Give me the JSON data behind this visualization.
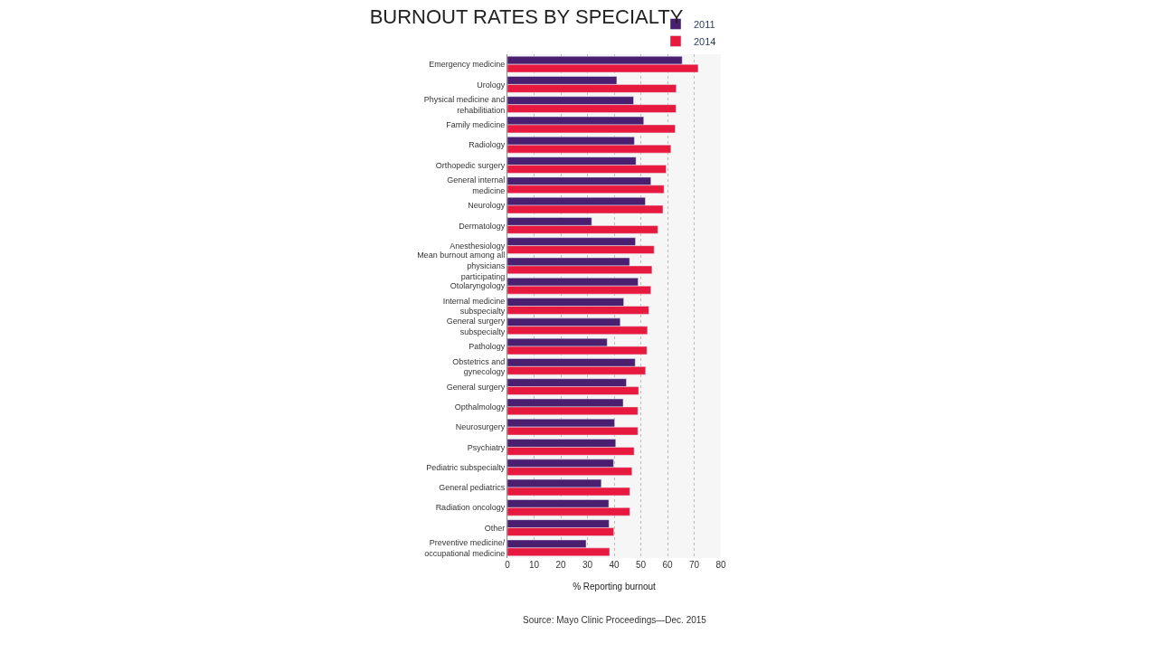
{
  "chart_data": {
    "type": "bar",
    "orientation": "horizontal",
    "title": "BURNOUT RATES BY SPECIALTY",
    "xlabel": "% Reporting burnout",
    "categories": [
      "Emergency medicine",
      "Urology",
      "Physical medicine and rehabilitiation",
      "Family medicine",
      "Radiology",
      "Orthopedic surgery",
      "General internal medicine",
      "Neurology",
      "Dermatology",
      "Anesthesiology",
      "Mean burnout among all physicians participating",
      "Otolaryngology",
      "Internal medicine subspecialty",
      "General surgery subspecialty",
      "Pathology",
      "Obstetrics and gynecology",
      "General surgery",
      "Opthalmology",
      "Neurosurgery",
      "Psychiatry",
      "Pediatric subspecialty",
      "General pediatrics",
      "Radiation oncology",
      "Other",
      "Preventive medicine/ occupational medicine"
    ],
    "series": [
      {
        "name": "2011",
        "color": "#4b1f6f",
        "values": [
          65.5,
          41,
          47.3,
          51.1,
          47.6,
          48.2,
          53.8,
          51.7,
          31.6,
          48,
          45.8,
          49,
          43.6,
          42.3,
          37.4,
          47.9,
          44.6,
          43.4,
          40.2,
          40.6,
          39.8,
          35.2,
          38,
          38.1,
          29.5
        ]
      },
      {
        "name": "2014",
        "color": "#e8193f",
        "values": [
          71.5,
          63.3,
          63.2,
          62.9,
          61.3,
          59.5,
          58.7,
          58.3,
          56.4,
          55,
          54.2,
          53.8,
          53,
          52.5,
          52.3,
          51.8,
          49.2,
          48.9,
          48.9,
          47.5,
          46.7,
          45.9,
          45.9,
          39.9,
          38.3
        ]
      }
    ],
    "xlim": [
      0,
      80
    ],
    "xticks": [
      0,
      10,
      20,
      30,
      40,
      50,
      60,
      70,
      80
    ],
    "grid": "x",
    "legend": "top right",
    "annotations": [
      "Source: Mayo Clinic Proceedings—Dec. 2015"
    ]
  }
}
